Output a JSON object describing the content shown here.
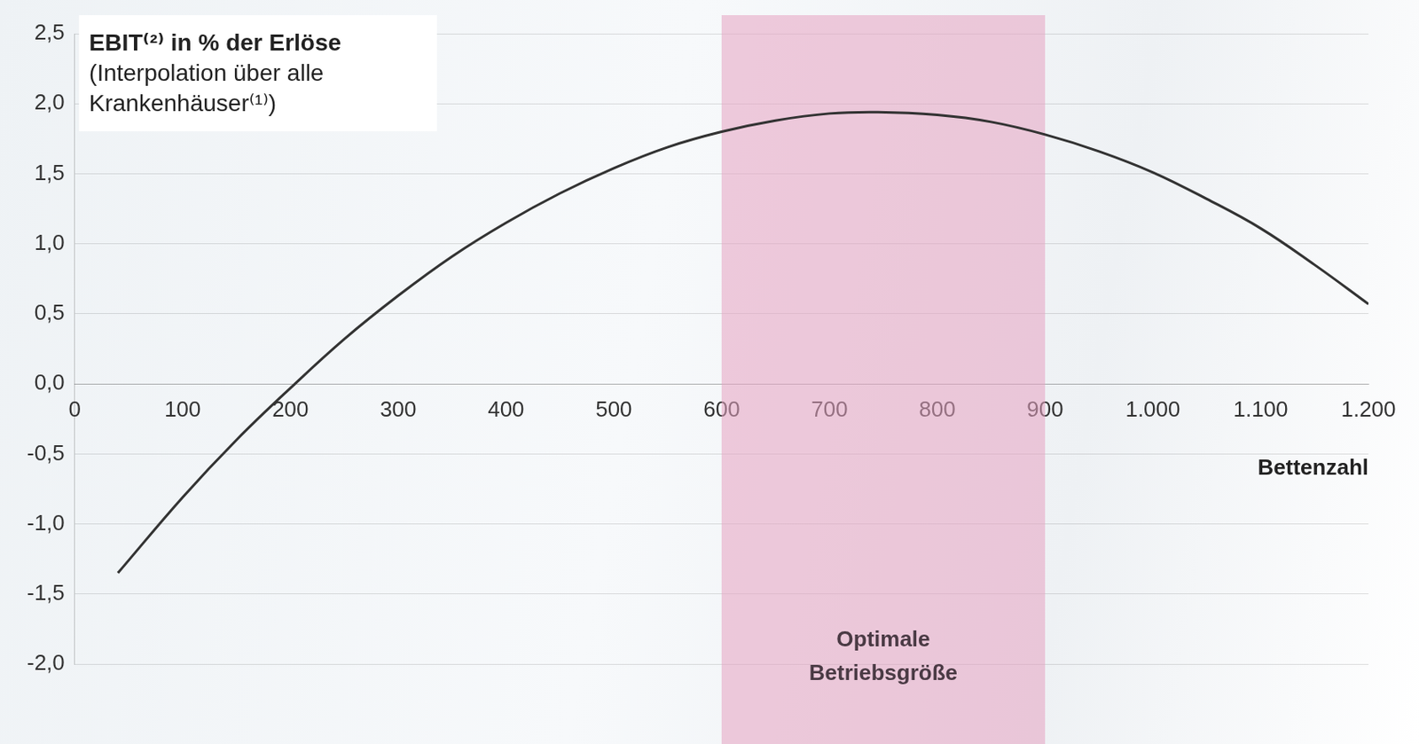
{
  "chart_data": {
    "type": "line",
    "title": "EBIT⁽²⁾ in % der Erlöse",
    "subtitle": "(Interpolation über alle Krankenhäuser⁽¹⁾)",
    "x_label": "Bettenzahl",
    "x": [
      40,
      100,
      150,
      200,
      250,
      300,
      350,
      400,
      450,
      500,
      550,
      600,
      650,
      700,
      745,
      800,
      850,
      900,
      950,
      1000,
      1050,
      1100,
      1150,
      1200
    ],
    "values": [
      -1.35,
      -0.81,
      -0.4,
      -0.03,
      0.32,
      0.63,
      0.91,
      1.15,
      1.36,
      1.54,
      1.69,
      1.8,
      1.88,
      1.93,
      1.94,
      1.92,
      1.87,
      1.78,
      1.66,
      1.51,
      1.32,
      1.11,
      0.85,
      0.57
    ],
    "color": "#333333",
    "xlim": [
      0,
      1200
    ],
    "xticks": [
      0,
      100,
      200,
      300,
      400,
      500,
      600,
      700,
      800,
      900,
      {
        "value": 1000,
        "label": "1.000"
      },
      {
        "value": 1100,
        "label": "1.100"
      },
      {
        "value": 1200,
        "label": "1.200"
      }
    ],
    "ylim": [
      -2.0,
      2.5
    ],
    "yticks": [
      {
        "value": -2.0,
        "label": "-2,0"
      },
      {
        "value": -1.5,
        "label": "-1,5"
      },
      {
        "value": -1.0,
        "label": "-1,0"
      },
      {
        "value": -0.5,
        "label": "-0,5"
      },
      {
        "value": 0.0,
        "label": "0,0"
      },
      {
        "value": 0.5,
        "label": "0,5"
      },
      {
        "value": 1.0,
        "label": "1,0"
      },
      {
        "value": 1.5,
        "label": "1,5"
      },
      {
        "value": 2.0,
        "label": "2,0"
      },
      {
        "value": 2.5,
        "label": "2,5"
      }
    ],
    "grid": true,
    "annotations": [
      {
        "text": "Optimale Betriebsgröße",
        "x_range": [
          600,
          900
        ],
        "color": "#e6a3c1"
      }
    ]
  }
}
